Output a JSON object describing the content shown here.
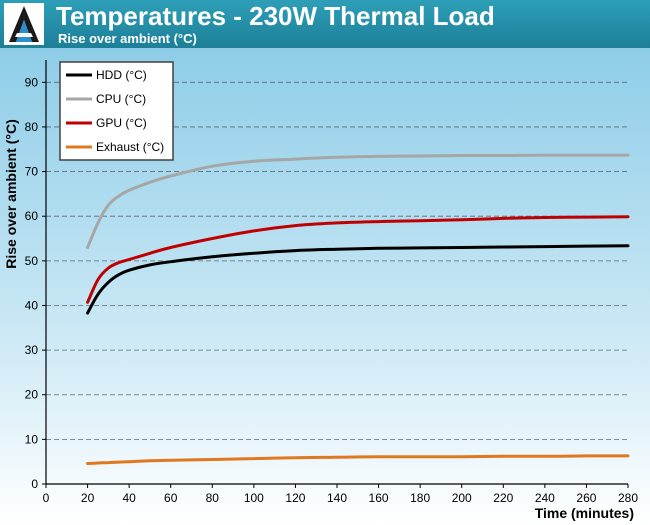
{
  "header": {
    "title": "Temperatures - 230W Thermal Load",
    "subtitle": "Rise over ambient (°C)",
    "background": "#2596b0"
  },
  "chart_data": {
    "type": "line",
    "xlabel": "Time (minutes)",
    "ylabel": "Rise over ambient (°C)",
    "xlim": [
      0,
      280
    ],
    "ylim": [
      0,
      95
    ],
    "xticks": [
      0,
      20,
      40,
      60,
      80,
      100,
      120,
      140,
      160,
      180,
      200,
      220,
      240,
      260,
      280
    ],
    "yticks": [
      0,
      10,
      20,
      30,
      40,
      50,
      60,
      70,
      80,
      90
    ],
    "grid": "horizontal dashed",
    "legend_position": "top-left",
    "x": [
      20,
      25,
      30,
      35,
      40,
      50,
      60,
      80,
      100,
      120,
      140,
      160,
      180,
      200,
      220,
      240,
      260,
      280
    ],
    "series": [
      {
        "name": "HDD (°C)",
        "color": "#000000",
        "values": [
          38.3,
          42.5,
          45.2,
          46.9,
          47.9,
          49.1,
          49.8,
          50.9,
          51.7,
          52.3,
          52.6,
          52.8,
          52.9,
          53.0,
          53.1,
          53.2,
          53.3,
          53.4
        ]
      },
      {
        "name": "CPU  (°C)",
        "color": "#a6a6a6",
        "values": [
          53.0,
          58.5,
          62.5,
          64.5,
          65.8,
          67.6,
          69.0,
          71.2,
          72.3,
          72.8,
          73.2,
          73.4,
          73.5,
          73.6,
          73.6,
          73.7,
          73.7,
          73.7
        ]
      },
      {
        "name": "GPU  (°C)",
        "color": "#c00000",
        "values": [
          40.7,
          45.8,
          48.4,
          49.6,
          50.3,
          51.7,
          53.0,
          55.0,
          56.7,
          57.9,
          58.5,
          58.8,
          59.0,
          59.2,
          59.5,
          59.7,
          59.8,
          59.9
        ]
      },
      {
        "name": "Exhaust  (°C)",
        "color": "#e0781e",
        "values": [
          4.6,
          4.7,
          4.8,
          4.9,
          5.0,
          5.2,
          5.3,
          5.5,
          5.7,
          5.9,
          6.0,
          6.1,
          6.1,
          6.1,
          6.2,
          6.2,
          6.3,
          6.3
        ]
      }
    ]
  }
}
